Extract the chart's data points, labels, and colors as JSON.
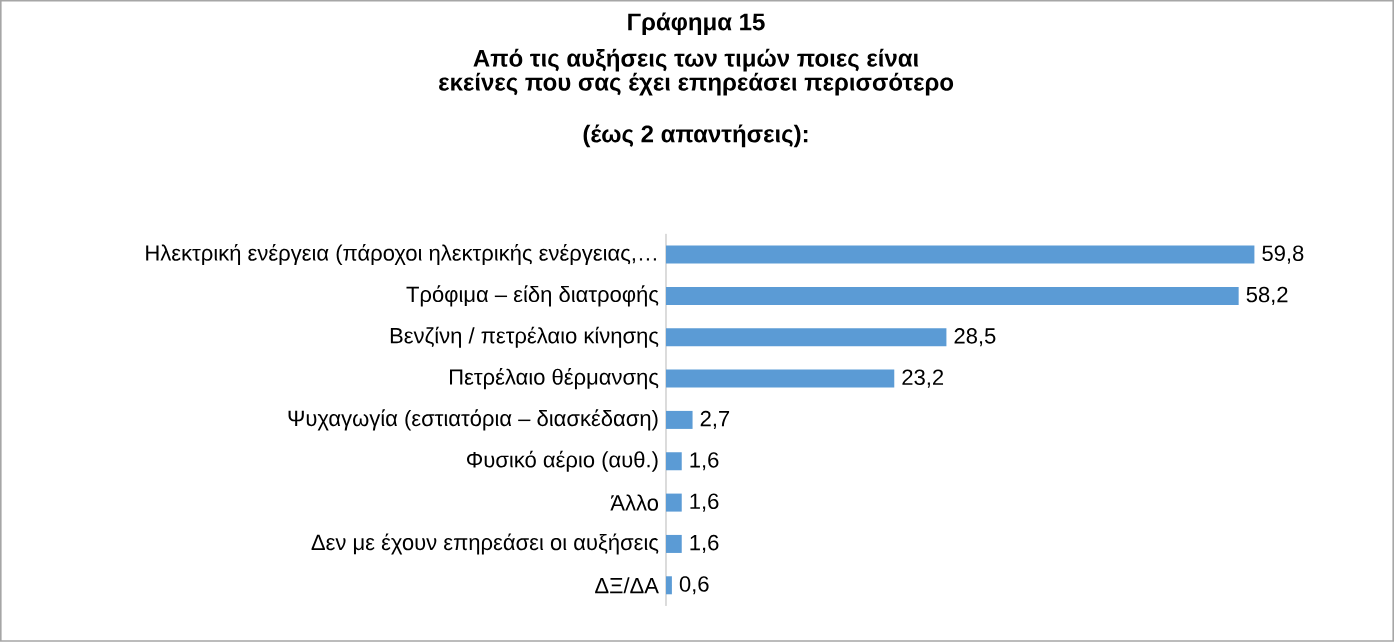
{
  "chart_data": {
    "type": "bar",
    "orientation": "horizontal",
    "title": "Γράφημα 15",
    "subtitle": "Από τις αυξήσεις των τιμών ποιες είναι εκείνες που σας έχει επηρεάσει περισσότερο",
    "annotations": [
      "(έως 2 απαντήσεις):"
    ],
    "categories": [
      "Ηλεκτρική ενέργεια (πάροχοι ηλεκτρικής ενέργειας,…",
      "Τρόφιμα – είδη διατροφής",
      "Βενζίνη / πετρέλαιο κίνησης",
      "Πετρέλαιο θέρμανσης",
      "Ψυχαγωγία (εστιατόρια – διασκέδαση)",
      "Φυσικό αέριο (αυθ.)",
      "Άλλο",
      "Δεν με έχουν επηρεάσει οι αυξήσεις",
      "ΔΞ/ΔΑ"
    ],
    "values": [
      59.8,
      58.2,
      28.5,
      23.2,
      2.7,
      1.6,
      1.6,
      1.6,
      0.6
    ],
    "value_labels": [
      "59,8",
      "58,2",
      "28,5",
      "23,2",
      "2,7",
      "1,6",
      "1,6",
      "1,6",
      "0,6"
    ],
    "color": "#5b9bd5"
  }
}
